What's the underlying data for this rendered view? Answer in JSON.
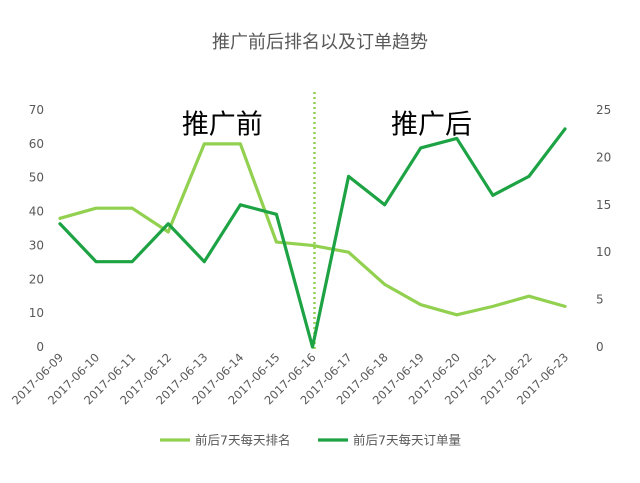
{
  "chart_data": {
    "type": "line",
    "title": "推广前后排名以及订单趋势",
    "categories": [
      "2017-06-09",
      "2017-06-10",
      "2017-06-11",
      "2017-06-12",
      "2017-06-13",
      "2017-06-14",
      "2017-06-15",
      "2017-06-16",
      "2017-06-17",
      "2017-06-18",
      "2017-06-19",
      "2017-06-20",
      "2017-06-21",
      "2017-06-22",
      "2017-06-23"
    ],
    "y_left": {
      "ticks": [
        "0",
        "10",
        "20",
        "30",
        "40",
        "50",
        "60",
        "70"
      ],
      "ylim": [
        0,
        70
      ]
    },
    "y_right": {
      "ticks": [
        "0",
        "5",
        "10",
        "15",
        "20",
        "25"
      ],
      "ylim": [
        0,
        25
      ]
    },
    "series": [
      {
        "name": "前后7天每天排名",
        "axis": "left",
        "color": "#92D050",
        "values": [
          38,
          41,
          41,
          34,
          60,
          60,
          31,
          30,
          28,
          18.5,
          12.5,
          9.5,
          12,
          15,
          12
        ]
      },
      {
        "name": "前后7天每天订单量",
        "axis": "right",
        "color": "#1DA344",
        "values": [
          13,
          9,
          9,
          13,
          9,
          15,
          14,
          0,
          18,
          15,
          21,
          22,
          16,
          18,
          23
        ]
      }
    ],
    "divider": {
      "position": 7,
      "color": "#92D050"
    },
    "annotations": [
      {
        "text": "推广前",
        "at_category": 4.5,
        "y_value": 66
      },
      {
        "text": "推广后",
        "at_category": 10.3,
        "y_value": 66
      }
    ],
    "grid": false,
    "legend": "bottom"
  }
}
